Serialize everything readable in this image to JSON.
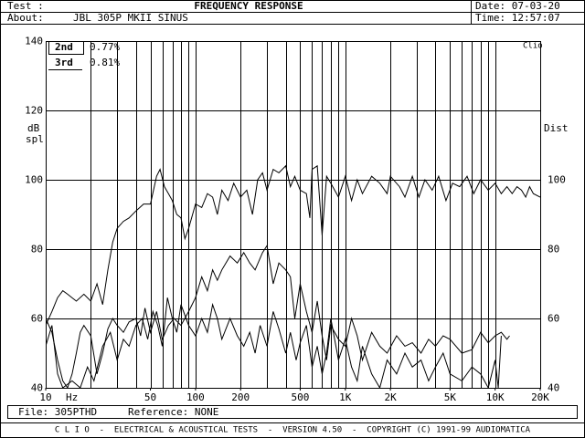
{
  "header": {
    "test_label": "Test :",
    "title": "FREQUENCY RESPONSE",
    "date": "Date: 07-03-20",
    "about_label": "About:",
    "device": "JBL 305P MKII SINUS",
    "time": "Time: 12:57:07"
  },
  "footer": {
    "file": "File: 305PTHD",
    "reference": "Reference: NONE",
    "copyright": "C L I O  -  ELECTRICAL & ACOUSTICAL TESTS  -  VERSION 4.50  -  COPYRIGHT (C) 1991-99 AUDIOMATICA"
  },
  "chart_data": {
    "type": "line",
    "log_x": true,
    "grid": true,
    "ylabel": "dB",
    "ylabel2": "spl",
    "y2label": "Dist",
    "xlabel": "Hz",
    "brand": "Clio",
    "xlim": [
      10,
      20000
    ],
    "ylim": [
      40,
      140
    ],
    "y2lim": [
      40,
      140
    ],
    "yticks": [
      40,
      60,
      80,
      100,
      120,
      140
    ],
    "y2ticks": [
      40,
      60,
      80,
      100
    ],
    "xticks": [
      10,
      50,
      100,
      200,
      500,
      {
        "value": 1000,
        "label": "1K"
      },
      {
        "value": 2000,
        "label": "2K"
      },
      {
        "value": 5000,
        "label": "5K"
      },
      {
        "value": 10000,
        "label": "10K"
      },
      {
        "value": 20000,
        "label": "20K"
      }
    ],
    "xgrid": [
      20,
      30,
      40,
      50,
      60,
      70,
      80,
      90,
      100,
      200,
      300,
      400,
      500,
      600,
      700,
      800,
      900,
      1000,
      2000,
      3000,
      4000,
      5000,
      6000,
      7000,
      8000,
      9000,
      10000
    ],
    "series": [
      {
        "name": "Response",
        "color": "#000000",
        "x": [
          10,
          11,
          12,
          13,
          14,
          16,
          18,
          20,
          22,
          24,
          26,
          28,
          30,
          33,
          36,
          40,
          45,
          50,
          55,
          58,
          62,
          66,
          70,
          75,
          80,
          85,
          90,
          100,
          110,
          120,
          130,
          140,
          150,
          165,
          180,
          200,
          220,
          240,
          260,
          280,
          300,
          330,
          360,
          400,
          430,
          460,
          500,
          550,
          580,
          600,
          650,
          700,
          750,
          800,
          900,
          1000,
          1100,
          1200,
          1300,
          1500,
          1700,
          1900,
          2000,
          2300,
          2500,
          2800,
          3100,
          3400,
          3800,
          4200,
          4700,
          5200,
          5800,
          6500,
          7200,
          8000,
          9000,
          10000,
          11000,
          12000,
          13000,
          14000,
          15000,
          16000,
          17000,
          18000,
          20000
        ],
        "values": [
          58,
          62,
          66,
          68,
          67,
          65,
          67,
          65,
          70,
          64,
          74,
          82,
          86,
          88,
          89,
          91,
          93,
          93,
          101,
          103,
          98,
          96,
          94,
          90,
          89,
          83,
          86,
          93,
          92,
          96,
          95,
          90,
          97,
          94,
          99,
          95,
          97,
          90,
          100,
          102,
          97,
          103,
          102,
          104,
          98,
          101,
          97,
          96,
          89,
          103,
          104,
          84,
          101,
          99,
          95,
          101,
          94,
          100,
          96,
          101,
          99,
          96,
          101,
          98,
          95,
          101,
          95,
          100,
          97,
          101,
          94,
          99,
          98,
          101,
          96,
          100,
          97,
          99,
          96,
          98,
          96,
          98,
          97,
          95,
          98,
          96,
          95
        ]
      },
      {
        "name": "2nd",
        "level": "0.77%",
        "color": "#000000",
        "x": [
          10,
          11,
          12,
          13,
          14,
          15,
          16,
          17,
          18,
          20,
          22,
          24,
          26,
          28,
          30,
          33,
          36,
          40,
          43,
          46,
          50,
          55,
          60,
          66,
          72,
          80,
          90,
          100,
          110,
          120,
          130,
          140,
          150,
          170,
          190,
          210,
          230,
          250,
          280,
          300,
          330,
          360,
          400,
          430,
          460,
          500,
          550,
          600,
          650,
          700,
          750,
          800,
          900,
          1000,
          1100,
          1200,
          1300,
          1500,
          1700,
          1900,
          2200,
          2500,
          2800,
          3200,
          3600,
          4000,
          4500,
          5000,
          6000,
          7000,
          8000,
          9000,
          10000,
          11000,
          12000,
          12500
        ],
        "values": [
          60,
          56,
          48,
          42,
          40,
          44,
          50,
          56,
          58,
          55,
          44,
          50,
          57,
          60,
          58,
          56,
          59,
          60,
          55,
          63,
          56,
          62,
          54,
          58,
          60,
          58,
          62,
          66,
          72,
          68,
          74,
          71,
          74,
          78,
          76,
          79,
          76,
          74,
          79,
          81,
          70,
          76,
          74,
          72,
          60,
          70,
          62,
          56,
          65,
          55,
          48,
          58,
          54,
          52,
          60,
          55,
          48,
          56,
          52,
          50,
          55,
          52,
          53,
          50,
          54,
          52,
          55,
          54,
          50,
          51,
          56,
          53,
          55,
          56,
          54,
          55
        ]
      },
      {
        "name": "3rd",
        "level": "0.81%",
        "color": "#000000",
        "x": [
          10,
          11,
          12,
          13,
          15,
          17,
          19,
          21,
          24,
          27,
          30,
          33,
          36,
          40,
          44,
          48,
          52,
          56,
          60,
          65,
          70,
          75,
          80,
          90,
          100,
          110,
          120,
          130,
          140,
          150,
          170,
          190,
          210,
          230,
          250,
          270,
          300,
          330,
          360,
          400,
          430,
          470,
          500,
          550,
          600,
          650,
          700,
          750,
          800,
          900,
          1000,
          1100,
          1200,
          1300,
          1500,
          1700,
          1900,
          2200,
          2500,
          2800,
          3200,
          3600,
          4000,
          4500,
          5000,
          6000,
          7000,
          8000,
          9000,
          10000,
          10500,
          11000
        ],
        "values": [
          52,
          58,
          44,
          40,
          42,
          40,
          46,
          42,
          52,
          56,
          48,
          54,
          52,
          58,
          60,
          54,
          62,
          58,
          52,
          66,
          60,
          56,
          64,
          58,
          55,
          60,
          56,
          64,
          60,
          54,
          60,
          55,
          52,
          56,
          50,
          58,
          52,
          62,
          57,
          50,
          56,
          48,
          53,
          58,
          46,
          52,
          44,
          50,
          60,
          48,
          54,
          46,
          42,
          52,
          44,
          40,
          48,
          44,
          50,
          46,
          48,
          42,
          46,
          50,
          44,
          42,
          46,
          44,
          40,
          48,
          40,
          55
        ]
      }
    ]
  }
}
